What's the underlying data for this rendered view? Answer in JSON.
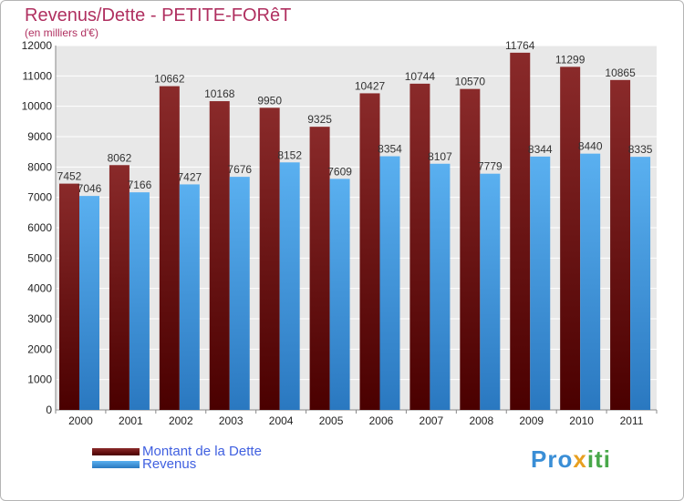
{
  "header": {
    "title": "Revenus/Dette - PETITE-FORêT",
    "subtitle": "(en milliers d'€)"
  },
  "legend": {
    "items": [
      {
        "label": "Montant de la Dette",
        "color": "#7a1c1c"
      },
      {
        "label": "Revenus",
        "color": "#4aa3e8"
      }
    ]
  },
  "logo": {
    "text": "Proxiti",
    "parts": [
      "Pro",
      "x",
      "iti"
    ]
  },
  "chart_data": {
    "type": "bar",
    "title": "Revenus/Dette - PETITE-FORêT",
    "subtitle": "(en milliers d'€)",
    "xlabel": "",
    "ylabel": "",
    "categories": [
      "2000",
      "2001",
      "2002",
      "2003",
      "2004",
      "2005",
      "2006",
      "2007",
      "2008",
      "2009",
      "2010",
      "2011"
    ],
    "series": [
      {
        "name": "Montant de la Dette",
        "color": "#7a1c1c",
        "values": [
          7452,
          8062,
          10662,
          10168,
          9950,
          9325,
          10427,
          10744,
          10570,
          11764,
          11299,
          10865
        ]
      },
      {
        "name": "Revenus",
        "color": "#4aa3e8",
        "values": [
          7046,
          7166,
          7427,
          7676,
          8152,
          7609,
          8354,
          8107,
          7779,
          8344,
          8440,
          8335
        ]
      }
    ],
    "ylim": [
      0,
      12000
    ],
    "yticks": [
      0,
      1000,
      2000,
      3000,
      4000,
      5000,
      6000,
      7000,
      8000,
      9000,
      10000,
      11000,
      12000
    ],
    "grid": true,
    "legend_position": "bottom-left"
  }
}
